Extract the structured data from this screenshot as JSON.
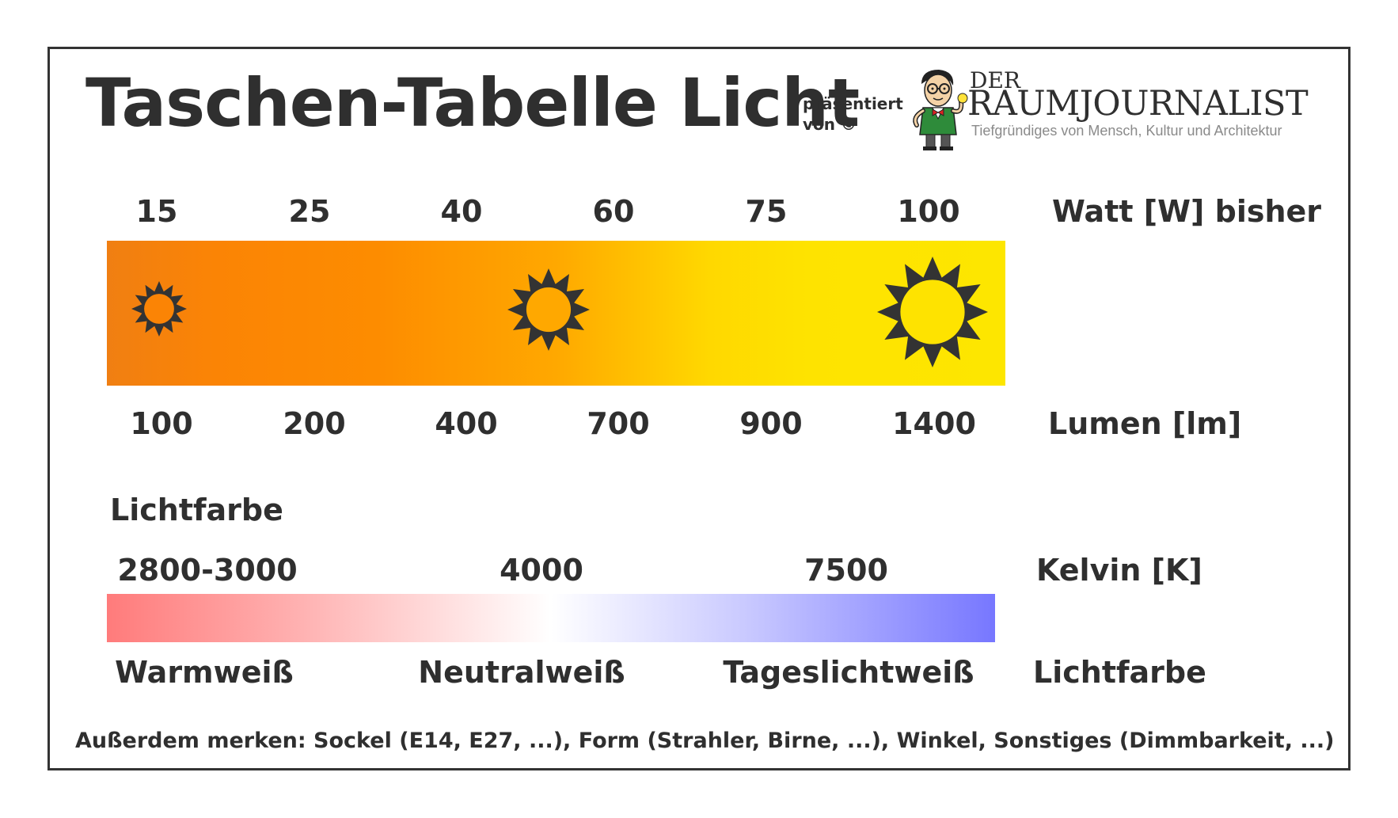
{
  "title": "Taschen-Tabelle Licht",
  "presented_by": [
    "präsentiert",
    "von ©"
  ],
  "logo": {
    "der": "DER",
    "name": "RAUMJOURNALIST",
    "tagline": "Tiefgründiges von Mensch, Kultur und Architektur"
  },
  "watt": {
    "values": [
      "15",
      "25",
      "40",
      "60",
      "75",
      "100"
    ],
    "unit_label": "Watt [W] bisher"
  },
  "lumen": {
    "values": [
      "100",
      "200",
      "400",
      "700",
      "900",
      "1400"
    ],
    "unit_label": "Lumen [lm]"
  },
  "lichtfarbe_heading": "Lichtfarbe",
  "kelvin": {
    "values": [
      "2800-3000",
      "4000",
      "7500"
    ],
    "unit_label": "Kelvin [K]"
  },
  "color_names": {
    "values": [
      "Warmweiß",
      "Neutralweiß",
      "Tageslichtweiß"
    ],
    "unit_label": "Lichtfarbe"
  },
  "footnote": "Außerdem merken: Sockel (E14, E27, ...), Form (Strahler, Birne, ...), Winkel, Sonstiges (Dimmbarkeit, ...)",
  "colors": {
    "watt_bar_start": "#f07f12",
    "watt_bar_end": "#fde600",
    "kelvin_bar_warm": "#ff7b7b",
    "kelvin_bar_neutral": "#ffffff",
    "kelvin_bar_daylight": "#7777ff",
    "sun": "#333333"
  },
  "icons": [
    "sun-icon-small",
    "sun-icon-medium",
    "sun-icon-large",
    "raumjournalist-mascot-icon"
  ]
}
